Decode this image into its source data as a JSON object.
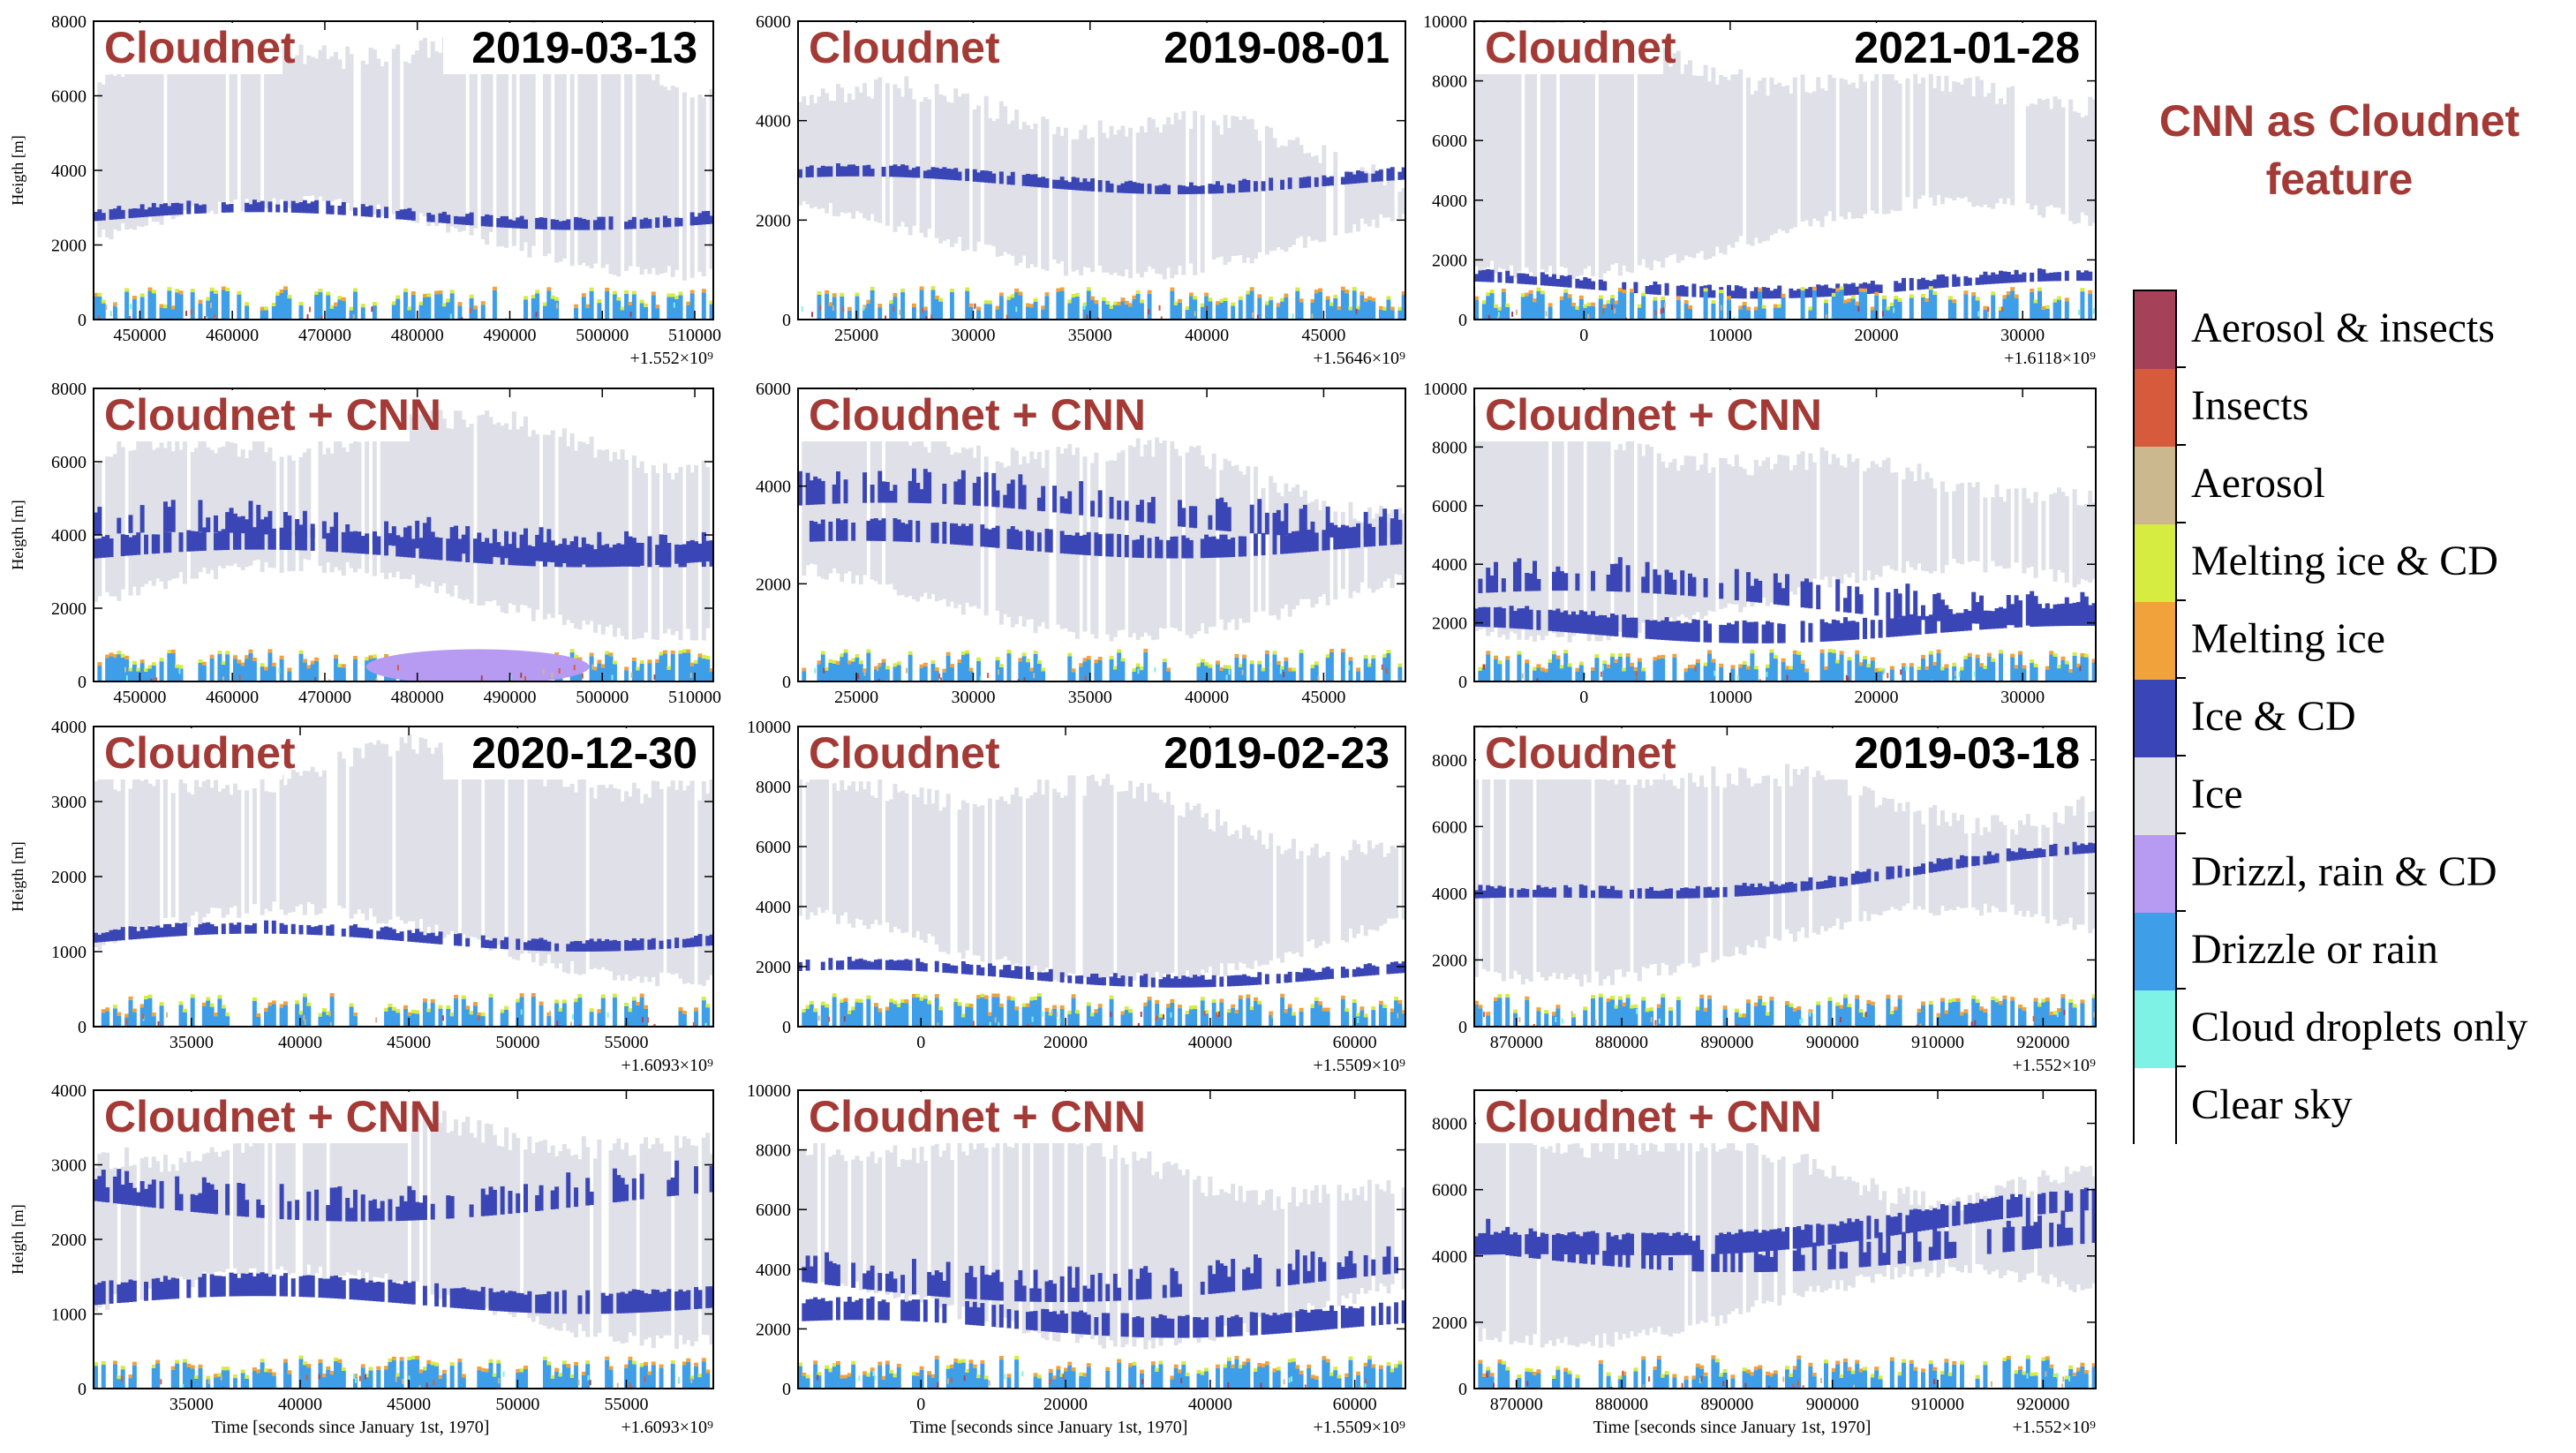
{
  "legend": {
    "title_line1": "CNN as Cloudnet",
    "title_line2": "feature",
    "classes": [
      {
        "label": "Aerosol & insects",
        "color": "#a5425a"
      },
      {
        "label": "Insects",
        "color": "#d65a3c"
      },
      {
        "label": "Aerosol",
        "color": "#cbb88e"
      },
      {
        "label": "Melting ice & CD",
        "color": "#d6ec40"
      },
      {
        "label": "Melting ice",
        "color": "#f2a23a"
      },
      {
        "label": "Ice & CD",
        "color": "#3b46b6"
      },
      {
        "label": "Ice",
        "color": "#e0e0e8"
      },
      {
        "label": "Drizzl, rain & CD",
        "color": "#b79af2"
      },
      {
        "label": "Drizzle or rain",
        "color": "#3e9ee8"
      },
      {
        "label": "Cloud droplets only",
        "color": "#7ef2e4"
      },
      {
        "label": "Clear sky",
        "color": "#ffffff"
      }
    ]
  },
  "common": {
    "ylabel": "Heigth [m]",
    "xlabel": "Time [seconds since January 1st, 1970]",
    "title_cloudnet": "Cloudnet",
    "title_cnn": "Cloudnet + CNN"
  },
  "chart_data": [
    {
      "type": "heatmap",
      "panel": "Cloudnet",
      "date": "2019-03-13",
      "xlim": [
        445000,
        512000
      ],
      "xticks": [
        450000,
        460000,
        470000,
        480000,
        490000,
        500000,
        510000
      ],
      "ylim": [
        0,
        8000
      ],
      "yticks": [
        0,
        2000,
        4000,
        6000,
        8000
      ],
      "offset": "+1.552×10⁹"
    },
    {
      "type": "heatmap",
      "panel": "Cloudnet",
      "date": "2019-08-01",
      "xlim": [
        22500,
        48500
      ],
      "xticks": [
        25000,
        30000,
        35000,
        40000,
        45000
      ],
      "ylim": [
        0,
        6000
      ],
      "yticks": [
        0,
        2000,
        4000,
        6000
      ],
      "offset": "+1.5646×10⁹"
    },
    {
      "type": "heatmap",
      "panel": "Cloudnet",
      "date": "2021-01-28",
      "xlim": [
        -7500,
        35000
      ],
      "xticks": [
        0,
        10000,
        20000,
        30000
      ],
      "ylim": [
        0,
        10000
      ],
      "yticks": [
        0,
        2000,
        4000,
        6000,
        8000,
        10000
      ],
      "offset": "+1.6118×10⁹"
    },
    {
      "type": "heatmap",
      "panel": "Cloudnet + CNN",
      "date": "",
      "xlim": [
        445000,
        512000
      ],
      "xticks": [
        450000,
        460000,
        470000,
        480000,
        490000,
        500000,
        510000
      ],
      "ylim": [
        0,
        8000
      ],
      "yticks": [
        0,
        2000,
        4000,
        6000,
        8000
      ],
      "offset": ""
    },
    {
      "type": "heatmap",
      "panel": "Cloudnet + CNN",
      "date": "",
      "xlim": [
        22500,
        48500
      ],
      "xticks": [
        25000,
        30000,
        35000,
        40000,
        45000
      ],
      "ylim": [
        0,
        6000
      ],
      "yticks": [
        0,
        2000,
        4000,
        6000
      ],
      "offset": ""
    },
    {
      "type": "heatmap",
      "panel": "Cloudnet + CNN",
      "date": "",
      "xlim": [
        -7500,
        35000
      ],
      "xticks": [
        0,
        10000,
        20000,
        30000
      ],
      "ylim": [
        0,
        10000
      ],
      "yticks": [
        0,
        2000,
        4000,
        6000,
        8000,
        10000
      ],
      "offset": ""
    },
    {
      "type": "heatmap",
      "panel": "Cloudnet",
      "date": "2020-12-30",
      "xlim": [
        30500,
        59000
      ],
      "xticks": [
        35000,
        40000,
        45000,
        50000,
        55000
      ],
      "ylim": [
        0,
        4000
      ],
      "yticks": [
        0,
        1000,
        2000,
        3000,
        4000
      ],
      "offset": "+1.6093×10⁹"
    },
    {
      "type": "heatmap",
      "panel": "Cloudnet",
      "date": "2019-02-23",
      "xlim": [
        -17000,
        67000
      ],
      "xticks": [
        0,
        20000,
        40000,
        60000
      ],
      "ylim": [
        0,
        10000
      ],
      "yticks": [
        0,
        2000,
        4000,
        6000,
        8000,
        10000
      ],
      "offset": "+1.5509×10⁹"
    },
    {
      "type": "heatmap",
      "panel": "Cloudnet",
      "date": "2019-03-18",
      "xlim": [
        866000,
        925000
      ],
      "xticks": [
        870000,
        880000,
        890000,
        900000,
        910000,
        920000
      ],
      "ylim": [
        0,
        9000
      ],
      "yticks": [
        0,
        2000,
        4000,
        6000,
        8000
      ],
      "offset": "+1.552×10⁹"
    },
    {
      "type": "heatmap",
      "panel": "Cloudnet + CNN",
      "date": "",
      "xlim": [
        30500,
        59000
      ],
      "xticks": [
        35000,
        40000,
        45000,
        50000,
        55000
      ],
      "ylim": [
        0,
        4000
      ],
      "yticks": [
        0,
        1000,
        2000,
        3000,
        4000
      ],
      "offset": "+1.6093×10⁹"
    },
    {
      "type": "heatmap",
      "panel": "Cloudnet + CNN",
      "date": "",
      "xlim": [
        -17000,
        67000
      ],
      "xticks": [
        0,
        20000,
        40000,
        60000
      ],
      "ylim": [
        0,
        10000
      ],
      "yticks": [
        0,
        2000,
        4000,
        6000,
        8000,
        10000
      ],
      "offset": "+1.5509×10⁹"
    },
    {
      "type": "heatmap",
      "panel": "Cloudnet + CNN",
      "date": "",
      "xlim": [
        866000,
        925000
      ],
      "xticks": [
        870000,
        880000,
        890000,
        900000,
        910000,
        920000
      ],
      "ylim": [
        0,
        9000
      ],
      "yticks": [
        0,
        2000,
        4000,
        6000,
        8000
      ],
      "offset": "+1.552×10⁹"
    }
  ]
}
